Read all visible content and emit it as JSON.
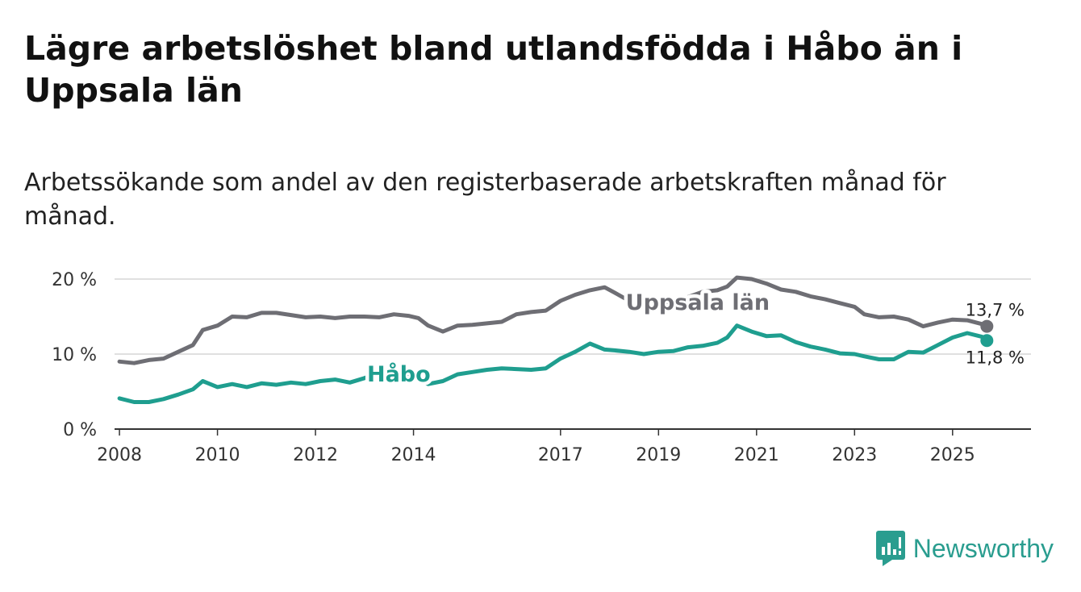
{
  "title": "Lägre arbetslöshet bland utlandsfödda i Håbo än i Uppsala län",
  "subtitle": "Arbetssökande som andel av den registerbaserade arbetskraften månad för månad.",
  "brand": {
    "name": "Newsworthy",
    "icon": "newsworthy-logo-icon",
    "color": "#2a9d8f"
  },
  "chart_data": {
    "type": "line",
    "title": "Lägre arbetslöshet bland utlandsfödda i Håbo än i Uppsala län",
    "subtitle": "Arbetssökande som andel av den registerbaserade arbetskraften månad för månad.",
    "xlabel": "",
    "ylabel": "",
    "xlim": [
      2007.9,
      2026.6
    ],
    "ylim": [
      0,
      20
    ],
    "x_ticks": [
      2008,
      2010,
      2012,
      2014,
      2017,
      2019,
      2021,
      2023,
      2025
    ],
    "y_ticks": [
      {
        "value": 0,
        "label": "0 %"
      },
      {
        "value": 10,
        "label": "10 %"
      },
      {
        "value": 20,
        "label": "20 %"
      }
    ],
    "grid": "horizontal",
    "series": [
      {
        "name": "Uppsala län",
        "color": "#6e6e74",
        "end_label": "13,7 %",
        "points": [
          [
            2008.0,
            9.0
          ],
          [
            2008.3,
            8.8
          ],
          [
            2008.6,
            9.2
          ],
          [
            2008.9,
            9.4
          ],
          [
            2009.2,
            10.3
          ],
          [
            2009.5,
            11.2
          ],
          [
            2009.7,
            13.2
          ],
          [
            2010.0,
            13.8
          ],
          [
            2010.3,
            15.0
          ],
          [
            2010.6,
            14.9
          ],
          [
            2010.9,
            15.5
          ],
          [
            2011.2,
            15.5
          ],
          [
            2011.5,
            15.2
          ],
          [
            2011.8,
            14.9
          ],
          [
            2012.1,
            15.0
          ],
          [
            2012.4,
            14.8
          ],
          [
            2012.7,
            15.0
          ],
          [
            2013.0,
            15.0
          ],
          [
            2013.3,
            14.9
          ],
          [
            2013.6,
            15.3
          ],
          [
            2013.9,
            15.1
          ],
          [
            2014.1,
            14.8
          ],
          [
            2014.3,
            13.8
          ],
          [
            2014.6,
            13.0
          ],
          [
            2014.9,
            13.8
          ],
          [
            2015.2,
            13.9
          ],
          [
            2015.5,
            14.1
          ],
          [
            2015.8,
            14.3
          ],
          [
            2016.1,
            15.3
          ],
          [
            2016.4,
            15.6
          ],
          [
            2016.7,
            15.8
          ],
          [
            2017.0,
            17.1
          ],
          [
            2017.3,
            17.9
          ],
          [
            2017.6,
            18.5
          ],
          [
            2017.9,
            18.9
          ],
          [
            2018.1,
            18.2
          ],
          [
            2018.4,
            17.1
          ],
          [
            2018.7,
            17.0
          ],
          [
            2019.0,
            17.0
          ],
          [
            2019.3,
            16.9
          ],
          [
            2019.6,
            17.6
          ],
          [
            2019.9,
            18.3
          ],
          [
            2020.2,
            18.5
          ],
          [
            2020.4,
            19.0
          ],
          [
            2020.6,
            20.2
          ],
          [
            2020.9,
            20.0
          ],
          [
            2021.2,
            19.4
          ],
          [
            2021.5,
            18.6
          ],
          [
            2021.8,
            18.3
          ],
          [
            2022.1,
            17.7
          ],
          [
            2022.4,
            17.3
          ],
          [
            2022.7,
            16.8
          ],
          [
            2023.0,
            16.3
          ],
          [
            2023.2,
            15.3
          ],
          [
            2023.5,
            14.9
          ],
          [
            2023.8,
            15.0
          ],
          [
            2024.1,
            14.6
          ],
          [
            2024.4,
            13.7
          ],
          [
            2024.7,
            14.2
          ],
          [
            2025.0,
            14.6
          ],
          [
            2025.3,
            14.5
          ],
          [
            2025.6,
            14.0
          ],
          [
            2025.7,
            13.7
          ]
        ]
      },
      {
        "name": "Håbo",
        "color": "#1f9e8f",
        "end_label": "11,8 %",
        "points": [
          [
            2008.0,
            4.1
          ],
          [
            2008.3,
            3.6
          ],
          [
            2008.6,
            3.6
          ],
          [
            2008.9,
            4.0
          ],
          [
            2009.2,
            4.6
          ],
          [
            2009.5,
            5.3
          ],
          [
            2009.7,
            6.4
          ],
          [
            2010.0,
            5.6
          ],
          [
            2010.3,
            6.0
          ],
          [
            2010.6,
            5.6
          ],
          [
            2010.9,
            6.1
          ],
          [
            2011.2,
            5.9
          ],
          [
            2011.5,
            6.2
          ],
          [
            2011.8,
            6.0
          ],
          [
            2012.1,
            6.4
          ],
          [
            2012.4,
            6.6
          ],
          [
            2012.7,
            6.2
          ],
          [
            2013.0,
            6.8
          ],
          [
            2013.3,
            7.6
          ],
          [
            2013.6,
            7.6
          ],
          [
            2013.9,
            7.0
          ],
          [
            2014.1,
            6.5
          ],
          [
            2014.3,
            6.0
          ],
          [
            2014.6,
            6.4
          ],
          [
            2014.9,
            7.3
          ],
          [
            2015.2,
            7.6
          ],
          [
            2015.5,
            7.9
          ],
          [
            2015.8,
            8.1
          ],
          [
            2016.1,
            8.0
          ],
          [
            2016.4,
            7.9
          ],
          [
            2016.7,
            8.1
          ],
          [
            2017.0,
            9.4
          ],
          [
            2017.3,
            10.3
          ],
          [
            2017.6,
            11.4
          ],
          [
            2017.9,
            10.6
          ],
          [
            2018.1,
            10.5
          ],
          [
            2018.4,
            10.3
          ],
          [
            2018.7,
            10.0
          ],
          [
            2019.0,
            10.3
          ],
          [
            2019.3,
            10.4
          ],
          [
            2019.6,
            10.9
          ],
          [
            2019.9,
            11.1
          ],
          [
            2020.2,
            11.5
          ],
          [
            2020.4,
            12.2
          ],
          [
            2020.6,
            13.8
          ],
          [
            2020.9,
            13.0
          ],
          [
            2021.2,
            12.4
          ],
          [
            2021.5,
            12.5
          ],
          [
            2021.8,
            11.6
          ],
          [
            2022.1,
            11.0
          ],
          [
            2022.4,
            10.6
          ],
          [
            2022.7,
            10.1
          ],
          [
            2023.0,
            10.0
          ],
          [
            2023.2,
            9.7
          ],
          [
            2023.5,
            9.3
          ],
          [
            2023.8,
            9.3
          ],
          [
            2024.1,
            10.3
          ],
          [
            2024.4,
            10.2
          ],
          [
            2024.7,
            11.2
          ],
          [
            2025.0,
            12.2
          ],
          [
            2025.3,
            12.8
          ],
          [
            2025.6,
            12.3
          ],
          [
            2025.7,
            11.8
          ]
        ]
      }
    ]
  }
}
